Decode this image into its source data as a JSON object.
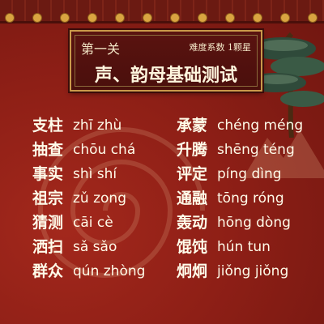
{
  "header": {
    "stage": "第一关",
    "difficulty": "难度系数 1颗星",
    "title": "声、韵母基础测试"
  },
  "words_left": [
    {
      "hanzi": "支柱",
      "pinyin": "zhī zhù"
    },
    {
      "hanzi": "抽查",
      "pinyin": "chōu chá"
    },
    {
      "hanzi": "事实",
      "pinyin": "shì shí"
    },
    {
      "hanzi": "祖宗",
      "pinyin": "zǔ zong"
    },
    {
      "hanzi": "猜测",
      "pinyin": "cāi cè"
    },
    {
      "hanzi": "洒扫",
      "pinyin": "sǎ sǎo"
    },
    {
      "hanzi": "群众",
      "pinyin": "qún zhòng"
    }
  ],
  "words_right": [
    {
      "hanzi": "承蒙",
      "pinyin": "chéng méng"
    },
    {
      "hanzi": "升腾",
      "pinyin": "shēng téng"
    },
    {
      "hanzi": "评定",
      "pinyin": "píng dìng"
    },
    {
      "hanzi": "通融",
      "pinyin": "tōng róng"
    },
    {
      "hanzi": "轰动",
      "pinyin": "hōng dòng"
    },
    {
      "hanzi": "馄饨",
      "pinyin": "hún tun"
    },
    {
      "hanzi": "炯炯",
      "pinyin": "jiǒng jiǒng"
    }
  ],
  "decor": {
    "pine_icon": "pine-tree-icon",
    "roof_icon": "roof-tiles-icon",
    "colors": {
      "background": "#8e1f16",
      "board": "#4a0f0c",
      "gold": "#c9994a",
      "text": "#fffbe9"
    }
  }
}
